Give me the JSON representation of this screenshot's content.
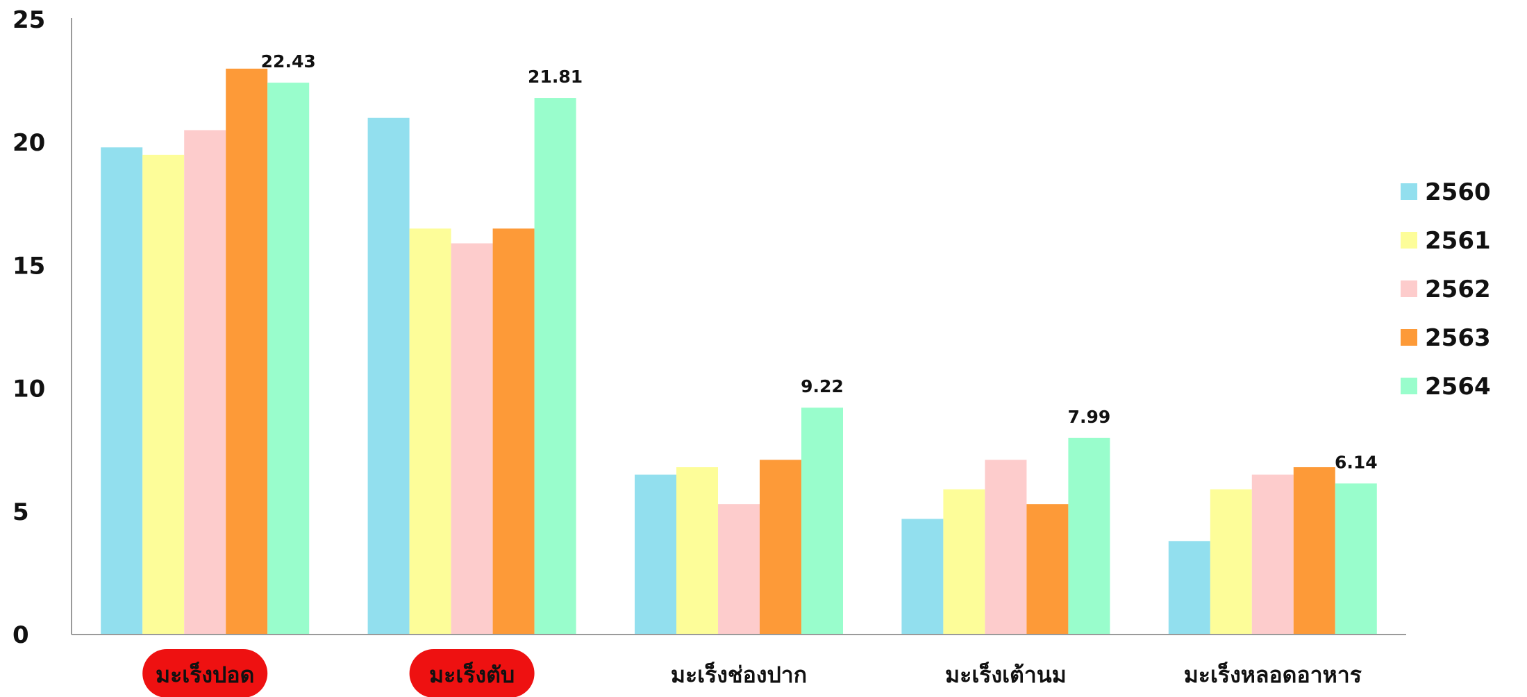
{
  "chart_data": {
    "type": "bar",
    "categories": [
      "มะเร็งปอด",
      "มะเร็งตับ",
      "มะเร็งช่องปาก",
      "มะเร็งเต้านม",
      "มะเร็งหลอดอาหาร"
    ],
    "highlighted_categories": [
      0,
      1
    ],
    "highlight_color": "#ee1111",
    "series": [
      {
        "name": "2560",
        "color": "#92dfee",
        "values": [
          19.8,
          21.0,
          6.5,
          4.7,
          3.8
        ]
      },
      {
        "name": "2561",
        "color": "#fdfd99",
        "values": [
          19.5,
          16.5,
          6.8,
          5.9,
          5.9
        ]
      },
      {
        "name": "2562",
        "color": "#fdcccc",
        "values": [
          20.5,
          15.9,
          5.3,
          7.1,
          6.5
        ]
      },
      {
        "name": "2563",
        "color": "#fd9a38",
        "values": [
          23.0,
          16.5,
          7.1,
          5.3,
          6.8
        ]
      },
      {
        "name": "2564",
        "color": "#99fdcc",
        "values": [
          22.43,
          21.81,
          9.22,
          7.99,
          6.14
        ]
      }
    ],
    "data_labels": {
      "series": 4,
      "labels": [
        "22.43",
        "21.81",
        "9.22",
        "7.99",
        "6.14"
      ]
    },
    "y_ticks": [
      "0",
      "5",
      "10",
      "15",
      "20",
      "25"
    ],
    "ylim": [
      0,
      25
    ],
    "grid": false,
    "legend_position": "right",
    "title": "",
    "xlabel": "",
    "ylabel": ""
  }
}
